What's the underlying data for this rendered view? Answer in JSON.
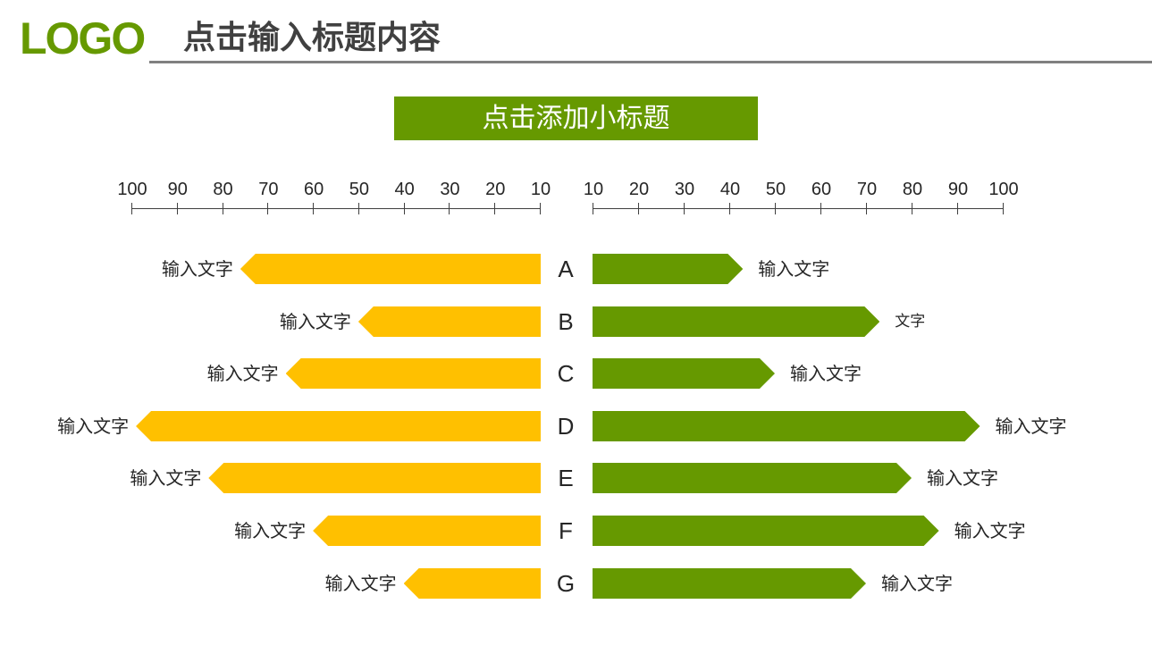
{
  "header": {
    "logo": "LOGO",
    "title": "点击输入标题内容"
  },
  "subtitle": "点击添加小标题",
  "colors": {
    "accent_green": "#669900",
    "accent_yellow": "#FFC000",
    "rule_gray": "#808080",
    "text": "#262626"
  },
  "chart_data": {
    "type": "bar",
    "orientation": "horizontal-butterfly",
    "title": "点击添加小标题",
    "categories": [
      "A",
      "B",
      "C",
      "D",
      "E",
      "F",
      "G"
    ],
    "left_axis": {
      "ticks": [
        100,
        90,
        80,
        70,
        60,
        50,
        40,
        30,
        20,
        10
      ],
      "direction": "reversed",
      "range": [
        10,
        100
      ]
    },
    "right_axis": {
      "ticks": [
        10,
        20,
        30,
        40,
        50,
        60,
        70,
        80,
        90,
        100
      ],
      "range": [
        10,
        100
      ]
    },
    "series": [
      {
        "name": "left",
        "color": "#FFC000",
        "values": [
          76,
          50,
          66,
          99,
          83,
          60,
          40
        ],
        "labels": [
          "输入文字",
          "输入文字",
          "输入文字",
          "输入文字",
          "输入文字",
          "输入文字",
          "输入文字"
        ]
      },
      {
        "name": "right",
        "color": "#669900",
        "values": [
          43,
          73,
          50,
          95,
          80,
          86,
          70
        ],
        "labels": [
          "输入文字",
          "文字",
          "输入文字",
          "输入文字",
          "输入文字",
          "输入文字",
          "输入文字"
        ]
      }
    ],
    "grid": false,
    "legend": "none"
  }
}
